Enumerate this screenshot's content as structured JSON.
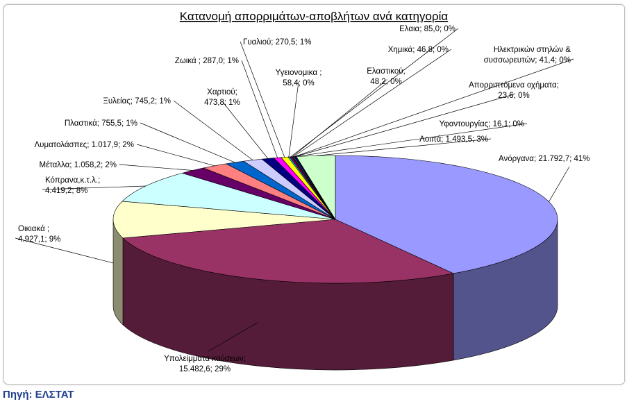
{
  "chart_data": {
    "type": "pie",
    "title": "Κατανομή απορριμάτων-αποβλήτων ανά κατηγορία",
    "slices": [
      {
        "name": "Ανόργανα",
        "value": 21792.7,
        "percent": 41,
        "label": "Ανόργανα; 21.792,7; 41%",
        "color": "#9999ff"
      },
      {
        "name": "Υπολείμματα καύσεων",
        "value": 15482.6,
        "percent": 29,
        "label": [
          "Υπολείμματα καύσεων;",
          "15.482,6; 29%"
        ],
        "color": "#993366"
      },
      {
        "name": "Οικιακά",
        "value": 4927.1,
        "percent": 9,
        "label": [
          "Οικιακά ;",
          "4.927,1; 9%"
        ],
        "color": "#ffffcc"
      },
      {
        "name": "Κόπρανα,κ.τ.λ.",
        "value": 4419.2,
        "percent": 8,
        "label": [
          "Κόπρανα,κ.τ.λ.;",
          "4.419,2; 8%"
        ],
        "color": "#ccffff"
      },
      {
        "name": "Μέταλλα",
        "value": 1058.2,
        "percent": 2,
        "label": "Μέταλλα; 1.058,2; 2%",
        "color": "#660066"
      },
      {
        "name": "Λυματολάσπες",
        "value": 1017.9,
        "percent": 2,
        "label": "Λυματολάσπες; 1.017,9; 2%",
        "color": "#ff8080"
      },
      {
        "name": "Πλαστικά",
        "value": 755.5,
        "percent": 1,
        "label": "Πλαστικά; 755,5; 1%",
        "color": "#0066cc"
      },
      {
        "name": "Ξυλείας",
        "value": 745.2,
        "percent": 1,
        "label": "Ξυλείας; 745,2; 1%",
        "color": "#ccccff"
      },
      {
        "name": "Χαρτιού",
        "value": 473.8,
        "percent": 1,
        "label": [
          "Χαρτιού;",
          "473,8; 1%"
        ],
        "color": "#000080"
      },
      {
        "name": "Ζωικά",
        "value": 287.0,
        "percent": 1,
        "label": "Ζωικά ; 287,0; 1%",
        "color": "#ff00ff"
      },
      {
        "name": "Γυαλιού",
        "value": 270.5,
        "percent": 1,
        "label": "Γυαλιού; 270,5; 1%",
        "color": "#ffff00"
      },
      {
        "name": "Υγειονομικα",
        "value": 58.4,
        "percent": 0,
        "label": [
          "Υγειονομικα ;",
          "58,4; 0%"
        ],
        "color": "#00ffff"
      },
      {
        "name": "Ελαια",
        "value": 85.0,
        "percent": 0,
        "label": "Ελαια; 85,0; 0%",
        "color": "#800080"
      },
      {
        "name": "Ελαστικού",
        "value": 48.2,
        "percent": 0,
        "label": [
          "Ελαστικού;",
          "48,2; 0%"
        ],
        "color": "#800000"
      },
      {
        "name": "Χημικά",
        "value": 46.8,
        "percent": 0,
        "label": "Χημικά; 46,8; 0%",
        "color": "#008080"
      },
      {
        "name": "Ηλεκτρικών στηλών & συσσωρευτών",
        "value": 41.4,
        "percent": 0,
        "label": [
          "Ηλεκτρικών στηλών &",
          "συσσωρευτών; 41,4; 0%"
        ],
        "color": "#0000ff"
      },
      {
        "name": "Απορριπτόμενα οχήματα",
        "value": 23.6,
        "percent": 0,
        "label": [
          "Απορριπτόμενα οχήματα;",
          "23,6; 0%"
        ],
        "color": "#00ccff"
      },
      {
        "name": "Υφαντουργίας",
        "value": 16.1,
        "percent": 0,
        "label": "Υφαντουργίας; 16,1; 0%",
        "color": "#ccffcc"
      },
      {
        "name": "Λοιπά",
        "value": 1493.5,
        "percent": 3,
        "label": "Λοιπά; 1.493,5; 3%",
        "color": "#ccffcc"
      }
    ]
  },
  "source": "Πηγή: ΕΛΣΤΑΤ"
}
